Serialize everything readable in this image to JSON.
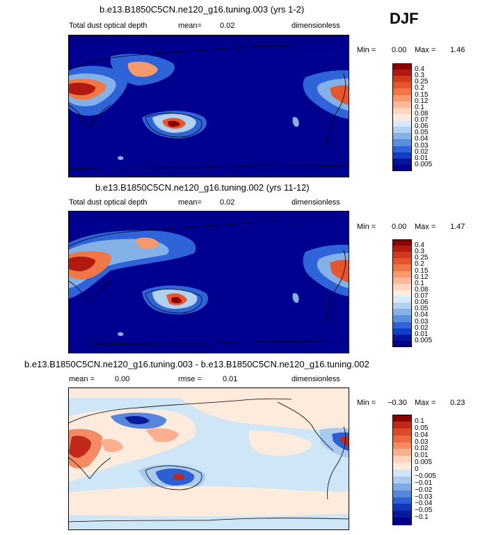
{
  "season": "DJF",
  "chart_data": [
    {
      "type": "heatmap",
      "title": "b.e13.B1850C5CN.ne120_g16.tuning.003 (yrs 1-2)",
      "variable": "Total dust optical depth",
      "mean_label": "mean=",
      "mean": "0.02",
      "units": "dimensionless",
      "min_label": "Min =",
      "min": "0.00",
      "max_label": "Max =",
      "max": "1.46",
      "colorbar": {
        "levels": [
          "0.4",
          "0.3",
          "0.25",
          "0.2",
          "0.15",
          "0.12",
          "0.1",
          "0.08",
          "0.07",
          "0.06",
          "0.05",
          "0.04",
          "0.03",
          "0.02",
          "0.01",
          "0.005"
        ],
        "colors": [
          "#8b0000",
          "#b11a0e",
          "#cf3a1d",
          "#e5552e",
          "#f07748",
          "#f79a6e",
          "#fbb99a",
          "#fdd7c1",
          "#fdebdd",
          "#d7e8f7",
          "#b2d0f0",
          "#85b1e9",
          "#5a8fe2",
          "#2e64d8",
          "#0f3fc4",
          "#03149a",
          "#00008b"
        ]
      }
    },
    {
      "type": "heatmap",
      "title": "b.e13.B1850C5CN.ne120_g16.tuning.002 (yrs 11-12)",
      "variable": "Total dust optical depth",
      "mean_label": "mean=",
      "mean": "0.02",
      "units": "dimensionless",
      "min_label": "Min =",
      "min": "0.00",
      "max_label": "Max =",
      "max": "1.47",
      "colorbar": {
        "levels": [
          "0.4",
          "0.3",
          "0.25",
          "0.2",
          "0.15",
          "0.12",
          "0.1",
          "0.08",
          "0.07",
          "0.06",
          "0.05",
          "0.04",
          "0.03",
          "0.02",
          "0.01",
          "0.005"
        ],
        "colors": [
          "#8b0000",
          "#b11a0e",
          "#cf3a1d",
          "#e5552e",
          "#f07748",
          "#f79a6e",
          "#fbb99a",
          "#fdd7c1",
          "#fdebdd",
          "#d7e8f7",
          "#b2d0f0",
          "#85b1e9",
          "#5a8fe2",
          "#2e64d8",
          "#0f3fc4",
          "#03149a",
          "#00008b"
        ]
      }
    },
    {
      "type": "heatmap",
      "title": "b.e13.B1850C5CN.ne120_g16.tuning.003 - b.e13.B1850C5CN.ne120_g16.tuning.002",
      "mean_label": "mean =",
      "mean": "0.00",
      "rmse_label": "rmse =",
      "rmse": "0.01",
      "units": "dimensionless",
      "min_label": "Min =",
      "min": "−0.30",
      "max_label": "Max =",
      "max": "0.23",
      "colorbar": {
        "levels": [
          "0.1",
          "0.05",
          "0.04",
          "0.03",
          "0.02",
          "0.01",
          "0.005",
          "0",
          "−0.005",
          "−0.01",
          "−0.02",
          "−0.03",
          "−0.04",
          "−0.05",
          "−0.1"
        ],
        "colors": [
          "#8b0000",
          "#c0291a",
          "#dc4a28",
          "#ec6840",
          "#f58b62",
          "#fab08f",
          "#fdd3bb",
          "#fdebdd",
          "#cfe6f6",
          "#aacbef",
          "#7eaae6",
          "#5586dc",
          "#2c5fd2",
          "#1236b8",
          "#041a9a",
          "#00008b"
        ]
      }
    }
  ]
}
